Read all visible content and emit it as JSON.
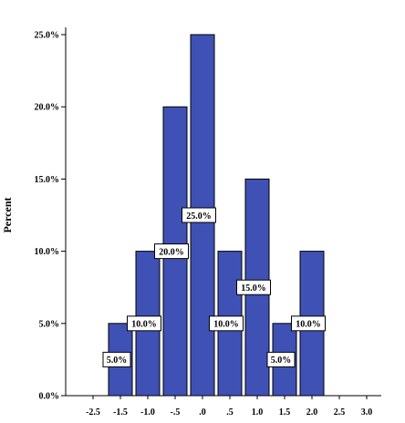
{
  "chart_data": {
    "type": "bar",
    "categories": [
      "-1.5",
      "-1.0",
      "-.5",
      ".0",
      ".5",
      "1.0",
      "1.5",
      "2.0"
    ],
    "values": [
      5.0,
      10.0,
      20.0,
      25.0,
      10.0,
      15.0,
      5.0,
      10.0
    ],
    "data_labels": [
      "5.0%",
      "10.0%",
      "20.0%",
      "25.0%",
      "10.0%",
      "15.0%",
      "5.0%",
      "10.0%"
    ],
    "x_ticks": [
      "-2.5",
      "-1.5",
      "-1.0",
      "-.5",
      ".0",
      ".5",
      "1.0",
      "1.5",
      "2.0",
      "2.5",
      "3.0"
    ],
    "y_ticks": [
      "0.0%",
      "5.0%",
      "10.0%",
      "15.0%",
      "20.0%",
      "25.0%"
    ],
    "title": "",
    "xlabel": "",
    "ylabel": "Percent",
    "ylim": [
      0,
      25
    ],
    "grid": false,
    "colors": {
      "bar_fill": "#3f51b5",
      "bar_stroke": "#000000",
      "label_box": "#ffffff"
    }
  }
}
